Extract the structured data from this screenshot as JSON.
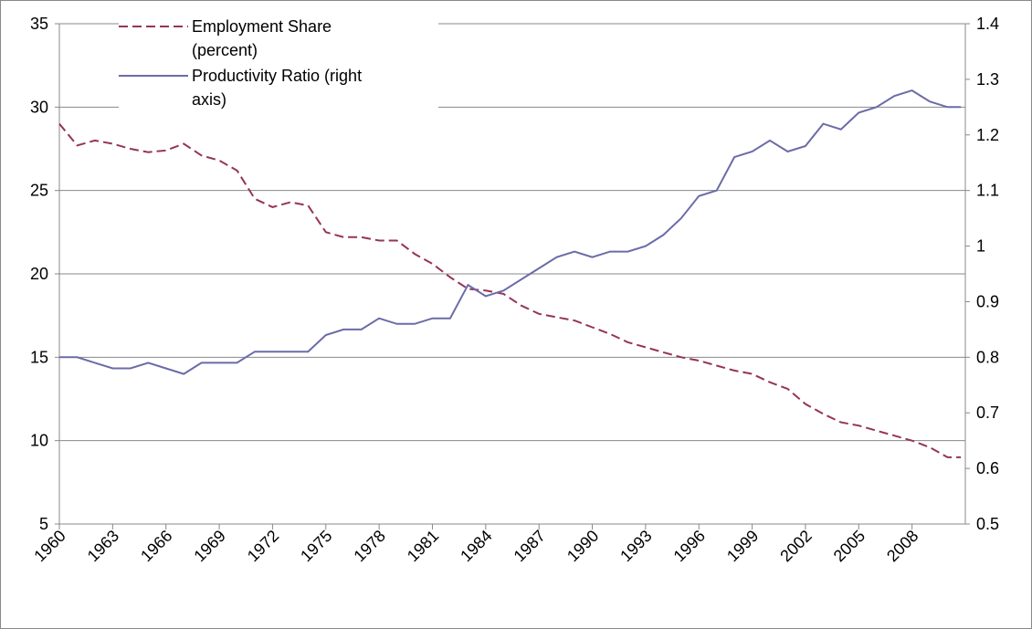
{
  "chart_data": {
    "type": "line",
    "x": [
      1960,
      1961,
      1962,
      1963,
      1964,
      1965,
      1966,
      1967,
      1968,
      1969,
      1970,
      1971,
      1972,
      1973,
      1974,
      1975,
      1976,
      1977,
      1978,
      1979,
      1980,
      1981,
      1982,
      1983,
      1984,
      1985,
      1986,
      1987,
      1988,
      1989,
      1990,
      1991,
      1992,
      1993,
      1994,
      1995,
      1996,
      1997,
      1998,
      1999,
      2000,
      2001,
      2002,
      2003,
      2004,
      2005,
      2006,
      2007,
      2008,
      2009,
      2010,
      2010.75
    ],
    "series": [
      {
        "name": "Employment Share (percent)",
        "color": "#953553",
        "dash": true,
        "values": [
          29,
          27.7,
          28,
          27.8,
          27.5,
          27.3,
          27.4,
          27.8,
          27.1,
          26.8,
          26.2,
          24.5,
          24,
          24.3,
          24.1,
          22.5,
          22.2,
          22.2,
          22,
          22,
          21.2,
          20.6,
          19.8,
          19.1,
          19,
          18.8,
          18.1,
          17.6,
          17.4,
          17.2,
          16.8,
          16.4,
          15.9,
          15.6,
          15.3,
          15,
          14.8,
          14.5,
          14.2,
          14,
          13.5,
          13.1,
          12.2,
          11.6,
          11.1,
          10.9,
          10.6,
          10.3,
          10,
          9.6,
          9,
          9
        ]
      },
      {
        "name": "Productivity Ratio (right axis)",
        "color": "#6b6ba8",
        "dash": false,
        "axis": "y2",
        "values": [
          0.8,
          0.8,
          0.79,
          0.78,
          0.78,
          0.79,
          0.78,
          0.77,
          0.79,
          0.79,
          0.79,
          0.81,
          0.81,
          0.81,
          0.81,
          0.84,
          0.85,
          0.85,
          0.87,
          0.86,
          0.86,
          0.87,
          0.87,
          0.93,
          0.91,
          0.92,
          0.94,
          0.96,
          0.98,
          0.99,
          0.98,
          0.99,
          0.99,
          1.0,
          1.02,
          1.05,
          1.09,
          1.1,
          1.16,
          1.17,
          1.19,
          1.17,
          1.18,
          1.22,
          1.21,
          1.24,
          1.25,
          1.27,
          1.28,
          1.26,
          1.25,
          1.25
        ]
      }
    ],
    "xlim": [
      1960,
      2011
    ],
    "xticks": [
      1960,
      1963,
      1966,
      1969,
      1972,
      1975,
      1978,
      1981,
      1984,
      1987,
      1990,
      1993,
      1996,
      1999,
      2002,
      2005,
      2008
    ],
    "ylim": [
      5,
      35
    ],
    "yticks": [
      5,
      10,
      15,
      20,
      25,
      30,
      35
    ],
    "y2lim": [
      0.5,
      1.4
    ],
    "y2ticks": [
      0.5,
      0.6,
      0.7,
      0.8,
      0.9,
      1,
      1.1,
      1.2,
      1.3,
      1.4
    ],
    "grid": true
  }
}
